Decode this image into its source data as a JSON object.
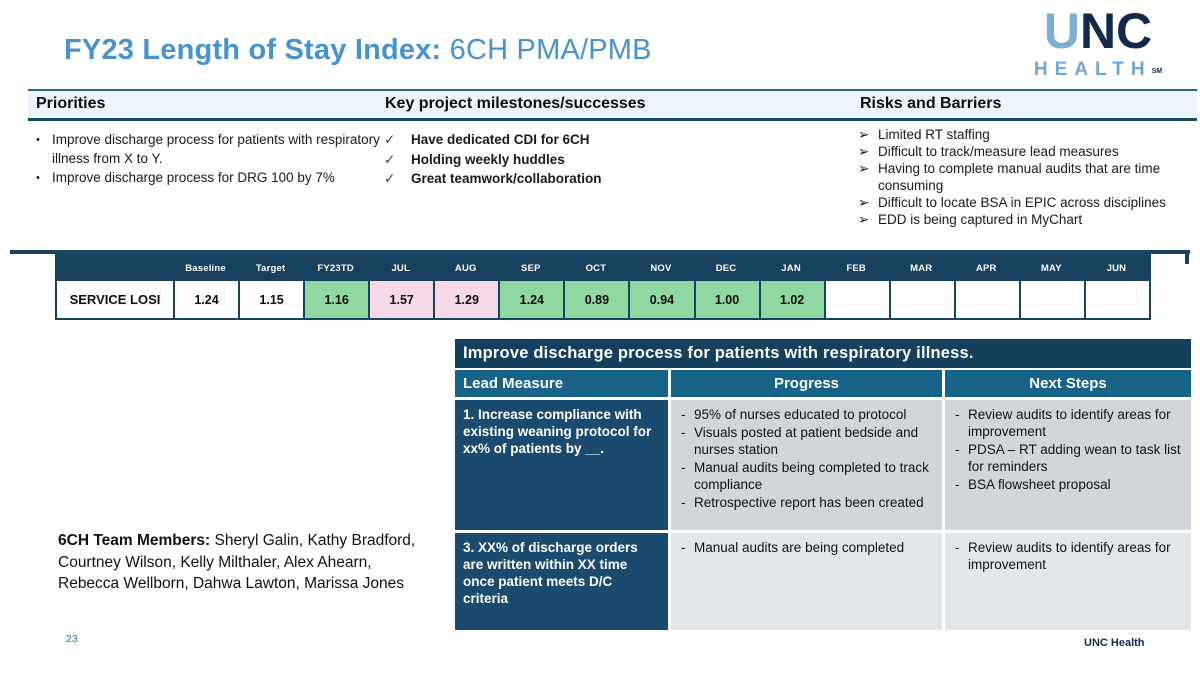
{
  "slide": {
    "title_bold": "FY23 Length of Stay Index:",
    "title_regular": " 6CH PMA/PMB",
    "page_number": "23",
    "footer_brand": "UNC Health"
  },
  "logo": {
    "u": "U",
    "n": "N",
    "c": "C",
    "health": "HEALTH",
    "mark": "SM"
  },
  "columns": {
    "priorities": {
      "header": "Priorities",
      "bullet": "•",
      "items": [
        "Improve discharge process for patients with respiratory illness from X to Y.",
        "Improve discharge process for DRG 100 by 7%"
      ]
    },
    "milestones": {
      "header": "Key project milestones/successes",
      "bullet": "✓",
      "items": [
        "Have dedicated CDI for 6CH",
        "Holding weekly huddles",
        "Great teamwork/collaboration"
      ]
    },
    "risks": {
      "header": "Risks and Barriers",
      "bullet": "➢",
      "items": [
        "Limited RT staffing",
        "Difficult to track/measure lead measures",
        "Having to complete manual audits that are time consuming",
        "Difficult to locate BSA in EPIC across disciplines",
        "EDD is being captured in MyChart"
      ]
    }
  },
  "los_table": {
    "row_label": "SERVICE LOSI",
    "cols": [
      {
        "h": "Baseline",
        "v": "1.24",
        "s": "white"
      },
      {
        "h": "Target",
        "v": "1.15",
        "s": "white"
      },
      {
        "h": "FY23TD",
        "v": "1.16",
        "s": "green"
      },
      {
        "h": "JUL",
        "v": "1.57",
        "s": "pink"
      },
      {
        "h": "AUG",
        "v": "1.29",
        "s": "pink"
      },
      {
        "h": "SEP",
        "v": "1.24",
        "s": "green"
      },
      {
        "h": "OCT",
        "v": "0.89",
        "s": "green"
      },
      {
        "h": "NOV",
        "v": "0.94",
        "s": "green"
      },
      {
        "h": "DEC",
        "v": "1.00",
        "s": "green"
      },
      {
        "h": "JAN",
        "v": "1.02",
        "s": "green"
      },
      {
        "h": "FEB",
        "v": "",
        "s": "white"
      },
      {
        "h": "MAR",
        "v": "",
        "s": "white"
      },
      {
        "h": "APR",
        "v": "",
        "s": "white"
      },
      {
        "h": "MAY",
        "v": "",
        "s": "white"
      },
      {
        "h": "JUN",
        "v": "",
        "s": "white"
      }
    ]
  },
  "improve_table": {
    "title": "Improve discharge process for patients with respiratory illness.",
    "dash": "-",
    "headers": [
      "Lead Measure",
      "Progress",
      "Next Steps"
    ],
    "rows": [
      {
        "lead": "1. Increase compliance with existing weaning protocol for xx% of patients by __.",
        "progress": [
          "95% of nurses educated to protocol",
          "Visuals posted at patient bedside and nurses station",
          "Manual audits being completed to track compliance",
          "Retrospective report has been created"
        ],
        "next_steps": [
          "Review audits to identify areas for improvement",
          "PDSA – RT adding wean to task list for reminders",
          "BSA flowsheet proposal"
        ]
      },
      {
        "lead": "3. XX% of discharge orders are written within XX time once patient meets D/C criteria",
        "progress": [
          "Manual audits are being completed"
        ],
        "next_steps": [
          "Review audits to identify areas for improvement"
        ]
      }
    ]
  },
  "team": {
    "label": "6CH Team Members:",
    "names": "Sheryl Galin, Kathy Bradford, Courtney Wilson, Kelly Milthaler, Alex Ahearn, Rebecca Wellborn, Dahwa Lawton, Marissa Jones"
  },
  "colors": {
    "title_blue": "#4793CF",
    "navy": "#16455E",
    "steel_blue": "#176287",
    "lead_navy": "#1A4A6E",
    "green": "#90D8A2",
    "pink": "#F8D9E8",
    "carolina_blue": "#7BAFD4",
    "brand_navy": "#13294B",
    "row1_gray": "#D2D6DB",
    "row2_gray": "#E4E7EA"
  }
}
